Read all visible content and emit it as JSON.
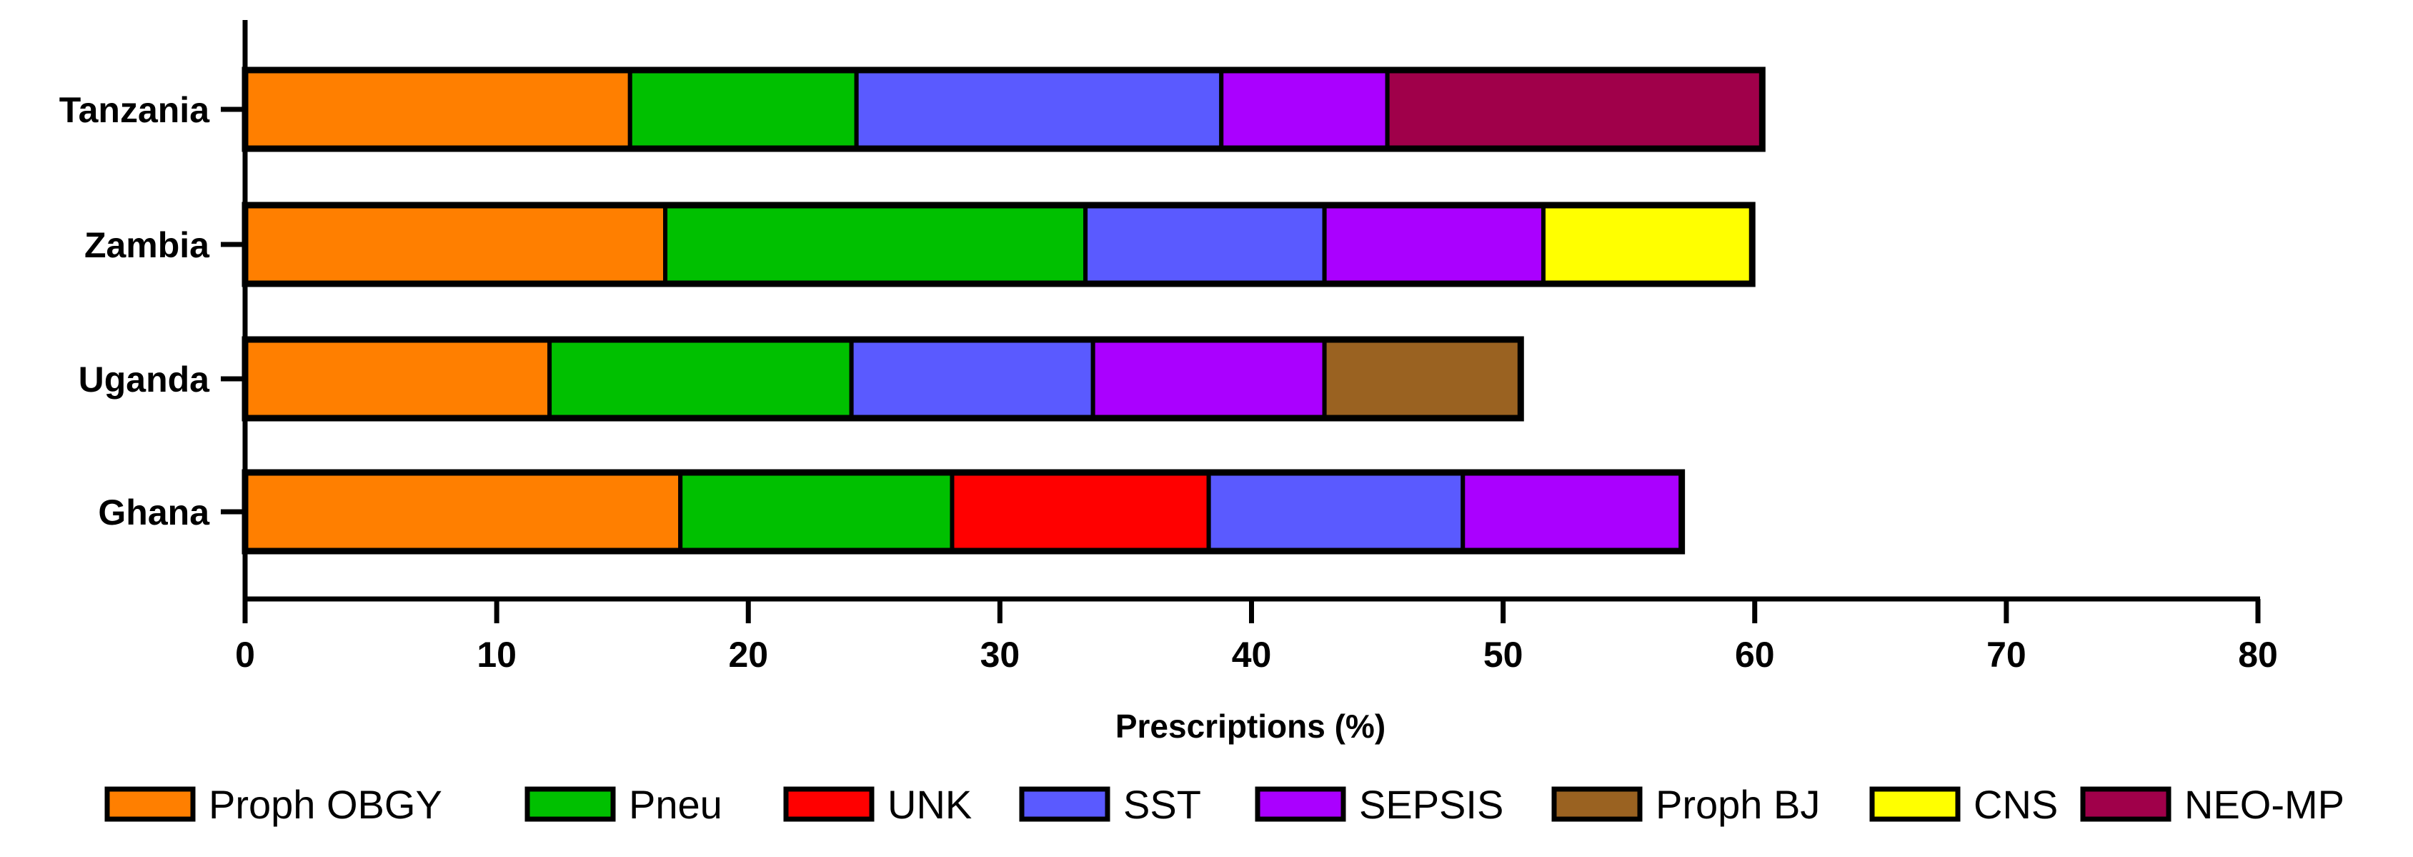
{
  "chart_data": {
    "type": "bar",
    "orientation": "horizontal",
    "stacked": true,
    "categories": [
      "Tanzania",
      "Zambia",
      "Uganda",
      "Ghana"
    ],
    "xlabel": "Prescriptions (%)",
    "ylabel": "",
    "xlim": [
      0,
      80
    ],
    "xticks": [
      0,
      10,
      20,
      30,
      40,
      50,
      60,
      70,
      80
    ],
    "grid": false,
    "legend_position": "bottom",
    "series": [
      {
        "name": "Proph OBGY",
        "color": "#FF7F00",
        "values": [
          15.3,
          16.7,
          12.1,
          17.3
        ]
      },
      {
        "name": "Pneu",
        "color": "#00C000",
        "values": [
          9.0,
          16.7,
          12.0,
          10.8
        ]
      },
      {
        "name": "UNK",
        "color": "#FF0000",
        "values": [
          0,
          0,
          0,
          10.2
        ]
      },
      {
        "name": "SST",
        "color": "#5A5AFF",
        "values": [
          14.5,
          9.5,
          9.6,
          10.1
        ]
      },
      {
        "name": "SEPSIS",
        "color": "#AA00FF",
        "values": [
          6.6,
          8.7,
          9.2,
          8.7
        ]
      },
      {
        "name": "Proph BJ",
        "color": "#9A6221",
        "values": [
          0,
          0,
          7.8,
          0
        ]
      },
      {
        "name": "CNS",
        "color": "#FFFF00",
        "values": [
          0,
          8.3,
          0,
          0
        ]
      },
      {
        "name": "NEO-MP",
        "color": "#A0004A",
        "values": [
          14.9,
          0,
          0,
          0
        ]
      }
    ]
  }
}
